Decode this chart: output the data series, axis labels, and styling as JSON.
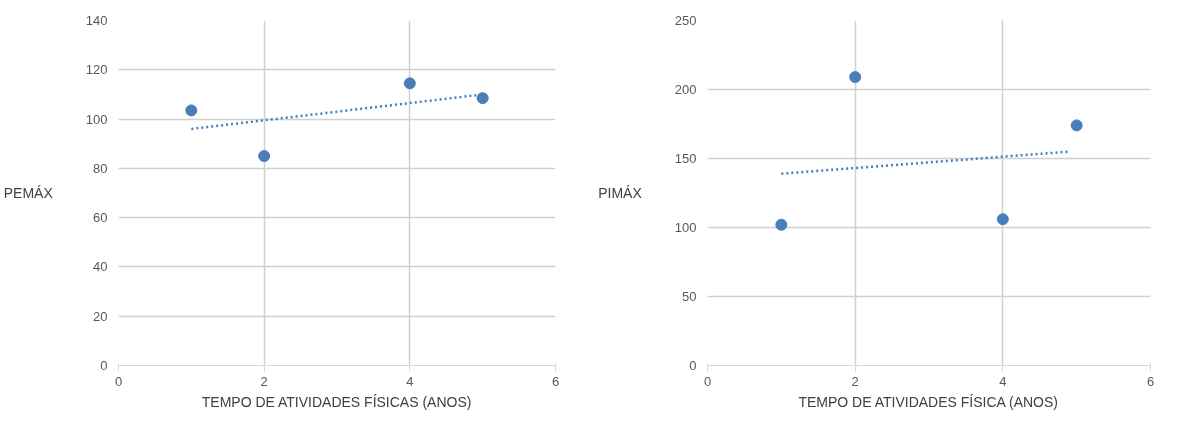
{
  "chart_data": [
    {
      "type": "scatter",
      "ylabel": "PEMÁX",
      "xlabel": "TEMPO DE ATIVIDADES FÍSICAS (ANOS)",
      "xlim": [
        0,
        6
      ],
      "xticks": [
        0,
        2,
        4,
        6
      ],
      "ylim": [
        0,
        140
      ],
      "yticks": [
        0,
        20,
        40,
        60,
        80,
        100,
        120,
        140
      ],
      "grid": true,
      "series": [
        {
          "color": "#4a7ebb",
          "marker": "circle",
          "x": [
            1,
            2,
            4,
            5
          ],
          "values": [
            103.5,
            85,
            114.5,
            108.5
          ]
        },
        {
          "type": "line",
          "color": "#4a7ebb",
          "marker": "none",
          "line_style": "dotted",
          "x": [
            1,
            5
          ],
          "values": [
            96,
            110
          ]
        }
      ]
    },
    {
      "type": "scatter",
      "ylabel": "PIMÁX",
      "xlabel": "TEMPO DE ATIVIDADES FÍSICA (ANOS)",
      "xlim": [
        0,
        6
      ],
      "xticks": [
        0,
        2,
        4,
        6
      ],
      "ylim": [
        0,
        250
      ],
      "yticks": [
        0,
        50,
        100,
        150,
        200,
        250
      ],
      "grid": true,
      "series": [
        {
          "color": "#4a7ebb",
          "marker": "circle",
          "x": [
            1,
            2,
            4,
            5
          ],
          "values": [
            102,
            209,
            106,
            174
          ]
        },
        {
          "type": "line",
          "color": "#4a7ebb",
          "marker": "none",
          "line_style": "dotted",
          "x": [
            1,
            4.9
          ],
          "values": [
            139,
            155
          ]
        }
      ]
    }
  ]
}
